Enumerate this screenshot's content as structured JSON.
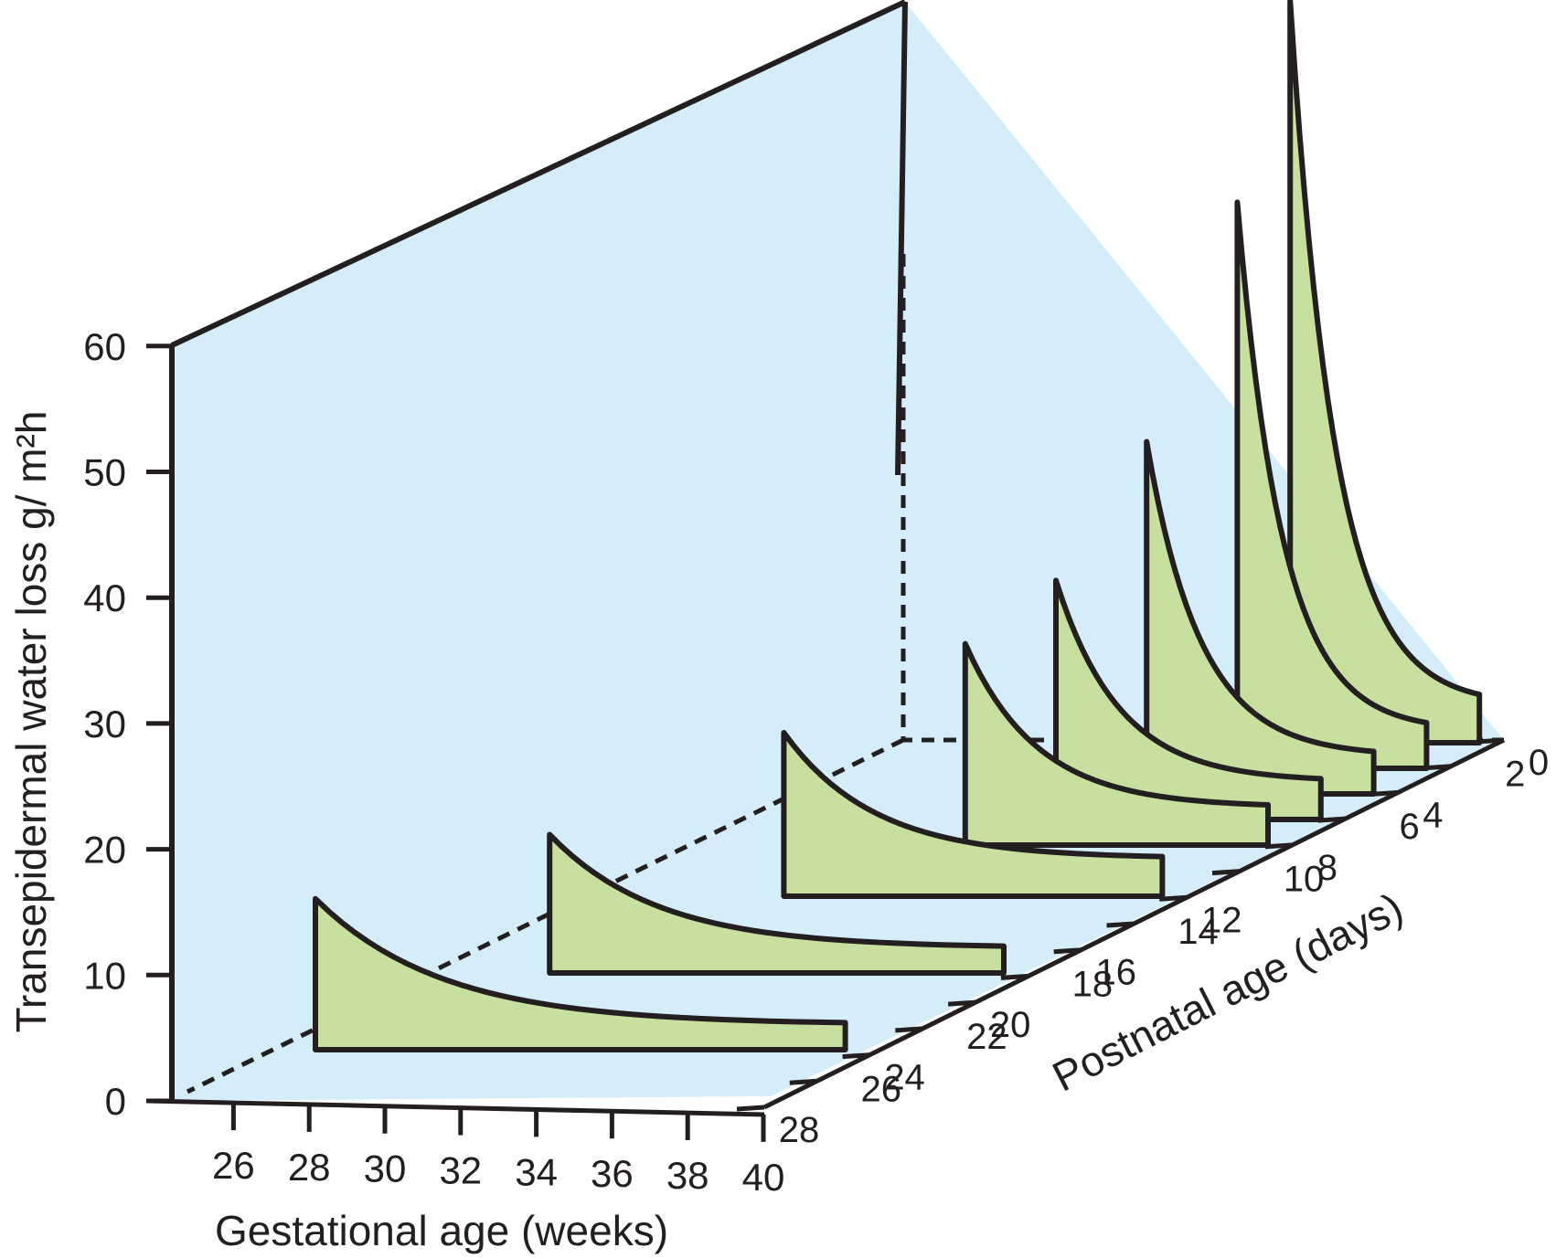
{
  "chart_data": {
    "type": "area",
    "projection": "3d",
    "xlabel": "Gestational age (weeks)",
    "ylabel": "Transepidermal water loss g/ m²h",
    "zlabel": "Postnatal age (days)",
    "x_ticks": [
      "26",
      "28",
      "30",
      "32",
      "34",
      "36",
      "38",
      "40"
    ],
    "y_ticks": [
      "0",
      "10",
      "20",
      "30",
      "40",
      "50",
      "60"
    ],
    "z_ticks": [
      "0",
      "2",
      "4",
      "6",
      "8",
      "10",
      "12",
      "14",
      "16",
      "18",
      "20",
      "22",
      "24",
      "26",
      "28"
    ],
    "xlim": [
      25,
      40
    ],
    "ylim": [
      0,
      60
    ],
    "zlim": [
      0,
      28
    ],
    "colors": {
      "wall": "#d5edf9",
      "surface": "#c7df9f",
      "outline": "#231f20"
    },
    "series": [
      {
        "gestational_age": 35,
        "days": [
          0,
          28
        ],
        "values": [
          59,
          3
        ]
      },
      {
        "gestational_age": 35,
        "days": [
          2,
          28
        ],
        "values": [
          45,
          3
        ]
      },
      {
        "gestational_age": 34,
        "days": [
          4,
          28
        ],
        "values": [
          28,
          3
        ]
      },
      {
        "gestational_age": 33,
        "days": [
          6,
          28
        ],
        "values": [
          19,
          3
        ]
      },
      {
        "gestational_age": 32,
        "days": [
          8,
          28
        ],
        "values": [
          16,
          3
        ]
      },
      {
        "gestational_age": 30,
        "days": [
          12,
          28
        ],
        "values": [
          13,
          3
        ]
      },
      {
        "gestational_age": 28,
        "days": [
          18,
          28
        ],
        "values": [
          11,
          2
        ]
      },
      {
        "gestational_age": 26,
        "days": [
          24,
          28
        ],
        "values": [
          12,
          2
        ]
      }
    ]
  }
}
